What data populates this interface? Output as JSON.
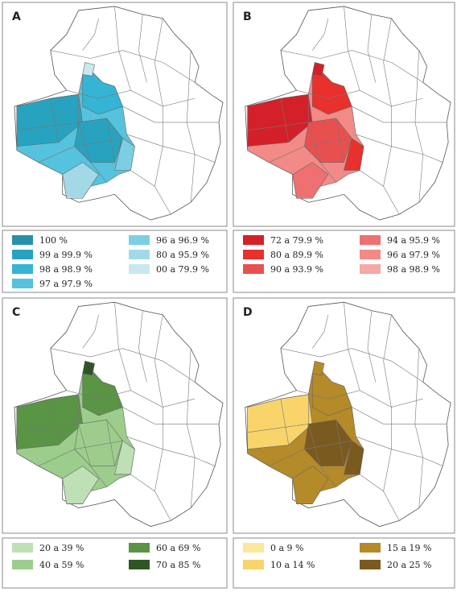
{
  "panels": [
    {
      "label": "A",
      "legend": [
        {
          "label": "100 %",
          "color": "#2a8fa8"
        },
        {
          "label": "99 a 99.9 %",
          "color": "#28a3bf"
        },
        {
          "label": "98 a 98.9 %",
          "color": "#35b4d4"
        },
        {
          "label": "97 a 97.9 %",
          "color": "#55c3de"
        },
        {
          "label": "96 a 96.9 %",
          "color": "#7ccfe2"
        },
        {
          "label": "80 a 95.9 %",
          "color": "#a3d9e6"
        },
        {
          "label": "00 a 79.9 %",
          "color": "#c8e8ee"
        }
      ]
    },
    {
      "label": "B",
      "legend": [
        {
          "label": "72 a 79.9 %",
          "color": "#d42028"
        },
        {
          "label": "80 a 89.9 %",
          "color": "#e8302d"
        },
        {
          "label": "90 a 93.9 %",
          "color": "#e8504f"
        },
        {
          "label": "94 a 95.9 %",
          "color": "#ef7070"
        },
        {
          "label": "96 a 97.9 %",
          "color": "#f28a88"
        },
        {
          "label": "98 a 98.9 %",
          "color": "#f5a8a5"
        }
      ]
    },
    {
      "label": "C",
      "legend": [
        {
          "label": "20 a 39 %",
          "color": "#bfe0b5"
        },
        {
          "label": "40 a 59 %",
          "color": "#9ccd8c"
        },
        {
          "label": "60 a 69 %",
          "color": "#5a9445"
        },
        {
          "label": "70 a 85 %",
          "color": "#2f5524"
        }
      ]
    },
    {
      "label": "D",
      "legend": [
        {
          "label": "0 a 9 %",
          "color": "#fde79a"
        },
        {
          "label": "10 a 14 %",
          "color": "#f8d46b"
        },
        {
          "label": "15 a 19 %",
          "color": "#b58a28"
        },
        {
          "label": "20 a 25 %",
          "color": "#7a5a1f"
        }
      ]
    }
  ]
}
